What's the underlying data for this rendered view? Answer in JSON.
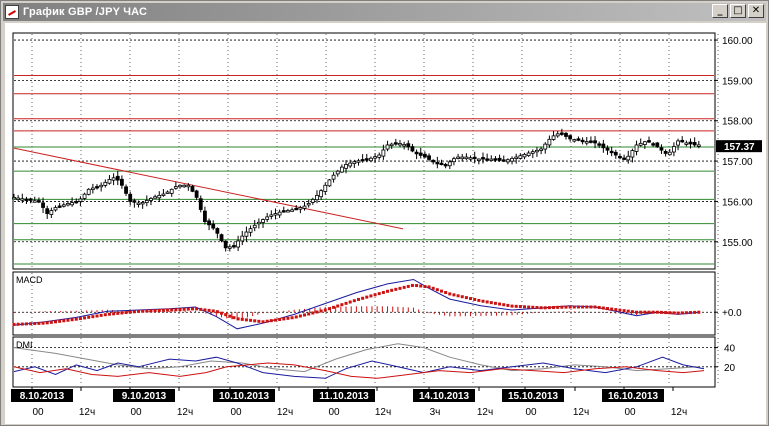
{
  "window": {
    "title": "График GBP /JPY ЧАС",
    "buttons": {
      "minimize": "_",
      "maximize": "□",
      "close": "✕"
    }
  },
  "colors": {
    "support_line": "#2f8a2f",
    "resistance_line": "#cc2222",
    "trend_line": "#cc2222",
    "candle": "#000000",
    "macd_line": "#1a1aa0",
    "macd_signal": "#cc1111",
    "dmi_plus": "#1a1aa0",
    "dmi_minus": "#cc1111",
    "adx": "#888888",
    "price_badge_bg": "#000000",
    "date_label_bg": "#000000"
  },
  "chart_data": [
    {
      "type": "candlestick",
      "symbol": "GBP/JPY",
      "timeframe": "ЧАС",
      "y_ticks": [
        "160.00",
        "159.00",
        "158.00",
        "157.00",
        "156.00",
        "155.00"
      ],
      "ylim": [
        154.35,
        160.15
      ],
      "current_price": "157.37",
      "horizontal_lines": {
        "red": [
          159.12,
          158.67,
          158.05,
          157.75
        ],
        "green": [
          157.35,
          156.75,
          156.05,
          155.45,
          155.05,
          154.45
        ],
        "dotted": [
          160.0,
          159.0,
          158.0,
          157.0,
          156.0,
          155.0
        ]
      },
      "trend_line": {
        "from": [
          0,
          157.32
        ],
        "to": [
          375,
          155.32
        ]
      },
      "close_series": [
        [
          0,
          156.1
        ],
        [
          12,
          156.05
        ],
        [
          24,
          156.0
        ],
        [
          32,
          155.7
        ],
        [
          40,
          155.85
        ],
        [
          52,
          155.95
        ],
        [
          62,
          156.0
        ],
        [
          72,
          156.3
        ],
        [
          84,
          156.4
        ],
        [
          95,
          156.6
        ],
        [
          102,
          156.5
        ],
        [
          112,
          156.0
        ],
        [
          122,
          155.95
        ],
        [
          134,
          156.1
        ],
        [
          146,
          156.2
        ],
        [
          158,
          156.4
        ],
        [
          168,
          156.4
        ],
        [
          176,
          156.1
        ],
        [
          184,
          155.5
        ],
        [
          194,
          155.3
        ],
        [
          204,
          154.85
        ],
        [
          212,
          154.9
        ],
        [
          222,
          155.2
        ],
        [
          234,
          155.45
        ],
        [
          246,
          155.65
        ],
        [
          258,
          155.75
        ],
        [
          270,
          155.8
        ],
        [
          282,
          155.9
        ],
        [
          294,
          156.2
        ],
        [
          306,
          156.6
        ],
        [
          318,
          156.9
        ],
        [
          330,
          157.0
        ],
        [
          342,
          157.05
        ],
        [
          352,
          157.15
        ],
        [
          360,
          157.4
        ],
        [
          370,
          157.45
        ],
        [
          378,
          157.4
        ],
        [
          386,
          157.2
        ],
        [
          396,
          157.1
        ],
        [
          406,
          156.95
        ],
        [
          416,
          156.9
        ],
        [
          426,
          157.1
        ],
        [
          436,
          157.1
        ],
        [
          448,
          157.05
        ],
        [
          460,
          157.05
        ],
        [
          472,
          157.0
        ],
        [
          484,
          157.1
        ],
        [
          496,
          157.2
        ],
        [
          508,
          157.3
        ],
        [
          518,
          157.6
        ],
        [
          526,
          157.7
        ],
        [
          536,
          157.55
        ],
        [
          548,
          157.5
        ],
        [
          560,
          157.45
        ],
        [
          570,
          157.3
        ],
        [
          580,
          157.15
        ],
        [
          590,
          157.05
        ],
        [
          600,
          157.4
        ],
        [
          610,
          157.5
        ],
        [
          620,
          157.35
        ],
        [
          630,
          157.15
        ],
        [
          640,
          157.5
        ],
        [
          648,
          157.45
        ],
        [
          656,
          157.4
        ]
      ]
    },
    {
      "type": "line",
      "name": "MACD",
      "y_ticks": [
        "+0.0"
      ],
      "series": [
        {
          "role": "macd",
          "values": [
            [
              0,
              -0.3
            ],
            [
              30,
              -0.22
            ],
            [
              60,
              -0.12
            ],
            [
              90,
              0.02
            ],
            [
              120,
              0.05
            ],
            [
              150,
              0.08
            ],
            [
              175,
              0.12
            ],
            [
              195,
              -0.1
            ],
            [
              215,
              -0.38
            ],
            [
              240,
              -0.25
            ],
            [
              270,
              -0.05
            ],
            [
              300,
              0.2
            ],
            [
              330,
              0.45
            ],
            [
              360,
              0.65
            ],
            [
              385,
              0.75
            ],
            [
              400,
              0.55
            ],
            [
              420,
              0.3
            ],
            [
              450,
              0.15
            ],
            [
              480,
              0.05
            ],
            [
              510,
              0.1
            ],
            [
              535,
              0.15
            ],
            [
              560,
              0.12
            ],
            [
              580,
              0.02
            ],
            [
              600,
              -0.08
            ],
            [
              620,
              0.0
            ],
            [
              640,
              -0.05
            ],
            [
              660,
              0.0
            ]
          ]
        },
        {
          "role": "signal",
          "values": [
            [
              0,
              -0.28
            ],
            [
              30,
              -0.25
            ],
            [
              60,
              -0.16
            ],
            [
              90,
              -0.05
            ],
            [
              120,
              0.02
            ],
            [
              150,
              0.05
            ],
            [
              175,
              0.08
            ],
            [
              195,
              0.02
            ],
            [
              215,
              -0.15
            ],
            [
              240,
              -0.22
            ],
            [
              270,
              -0.12
            ],
            [
              300,
              0.05
            ],
            [
              330,
              0.28
            ],
            [
              360,
              0.48
            ],
            [
              385,
              0.62
            ],
            [
              400,
              0.58
            ],
            [
              420,
              0.42
            ],
            [
              450,
              0.26
            ],
            [
              480,
              0.14
            ],
            [
              510,
              0.1
            ],
            [
              535,
              0.12
            ],
            [
              560,
              0.12
            ],
            [
              580,
              0.06
            ],
            [
              600,
              0.0
            ],
            [
              620,
              0.0
            ],
            [
              640,
              -0.02
            ],
            [
              660,
              0.0
            ]
          ]
        }
      ]
    },
    {
      "type": "line",
      "name": "DMI",
      "y_ticks": [
        "40",
        "20"
      ],
      "ylim": [
        0,
        50
      ],
      "series": [
        {
          "role": "adx",
          "values": [
            [
              0,
              40
            ],
            [
              40,
              34
            ],
            [
              70,
              28
            ],
            [
              100,
              22
            ],
            [
              130,
              18
            ],
            [
              160,
              20
            ],
            [
              190,
              26
            ],
            [
              220,
              24
            ],
            [
              250,
              18
            ],
            [
              280,
              15
            ],
            [
              310,
              28
            ],
            [
              340,
              38
            ],
            [
              370,
              44
            ],
            [
              395,
              40
            ],
            [
              420,
              30
            ],
            [
              450,
              22
            ],
            [
              480,
              16
            ],
            [
              510,
              18
            ],
            [
              540,
              22
            ],
            [
              570,
              20
            ],
            [
              600,
              16
            ],
            [
              630,
              18
            ],
            [
              660,
              20
            ]
          ]
        },
        {
          "role": "di_plus",
          "values": [
            [
              0,
              15
            ],
            [
              20,
              20
            ],
            [
              40,
              12
            ],
            [
              60,
              22
            ],
            [
              80,
              16
            ],
            [
              100,
              24
            ],
            [
              120,
              20
            ],
            [
              150,
              28
            ],
            [
              175,
              26
            ],
            [
              195,
              30
            ],
            [
              215,
              24
            ],
            [
              240,
              14
            ],
            [
              270,
              10
            ],
            [
              300,
              8
            ],
            [
              320,
              18
            ],
            [
              345,
              26
            ],
            [
              370,
              20
            ],
            [
              395,
              14
            ],
            [
              420,
              20
            ],
            [
              450,
              16
            ],
            [
              480,
              20
            ],
            [
              510,
              24
            ],
            [
              540,
              18
            ],
            [
              570,
              14
            ],
            [
              600,
              20
            ],
            [
              625,
              30
            ],
            [
              645,
              22
            ],
            [
              665,
              18
            ]
          ]
        },
        {
          "role": "di_minus",
          "values": [
            [
              0,
              20
            ],
            [
              25,
              14
            ],
            [
              50,
              18
            ],
            [
              75,
              12
            ],
            [
              100,
              10
            ],
            [
              130,
              14
            ],
            [
              160,
              10
            ],
            [
              185,
              14
            ],
            [
              205,
              20
            ],
            [
              225,
              22
            ],
            [
              245,
              24
            ],
            [
              270,
              22
            ],
            [
              300,
              16
            ],
            [
              325,
              10
            ],
            [
              350,
              8
            ],
            [
              380,
              12
            ],
            [
              410,
              16
            ],
            [
              440,
              14
            ],
            [
              470,
              18
            ],
            [
              500,
              16
            ],
            [
              530,
              14
            ],
            [
              560,
              18
            ],
            [
              590,
              20
            ],
            [
              620,
              16
            ],
            [
              645,
              14
            ],
            [
              665,
              16
            ]
          ]
        }
      ]
    }
  ],
  "time_axis": {
    "dates": [
      "8.10.2013",
      "9.10.2013",
      "10.10.2013",
      "11.10.2013",
      "14.10.2013",
      "15.10.2013",
      "16.10.2013"
    ],
    "hours": [
      "00",
      "12ч",
      "00",
      "12ч",
      "00",
      "12ч",
      "00",
      "12ч",
      "3ч",
      "12ч",
      "00",
      "12ч",
      "00",
      "12ч"
    ]
  },
  "indicators": {
    "macd_label": "MACD",
    "dmi_label": "DMI"
  }
}
